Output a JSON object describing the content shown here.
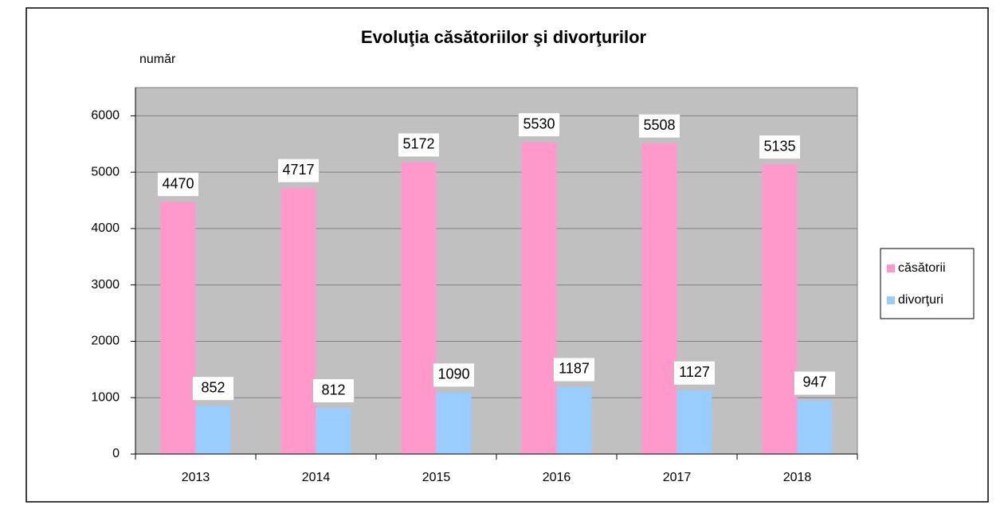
{
  "chart_data": {
    "type": "bar",
    "title": "Evoluţia căsătoriilor şi divorţurilor",
    "y_label": "număr",
    "categories": [
      "2013",
      "2014",
      "2015",
      "2016",
      "2017",
      "2018"
    ],
    "series": [
      {
        "name": "căsătorii",
        "color": "#ff99cc",
        "values": [
          4470,
          4717,
          5172,
          5530,
          5508,
          5135
        ]
      },
      {
        "name": "divorţuri",
        "color": "#99ccff",
        "values": [
          852,
          812,
          1090,
          1187,
          1127,
          947
        ]
      }
    ],
    "ylim": [
      0,
      6500
    ],
    "yticks": [
      0,
      1000,
      2000,
      3000,
      4000,
      5000,
      6000
    ],
    "grid": true,
    "legend": "right",
    "plot_background": "#c0c0c0"
  }
}
